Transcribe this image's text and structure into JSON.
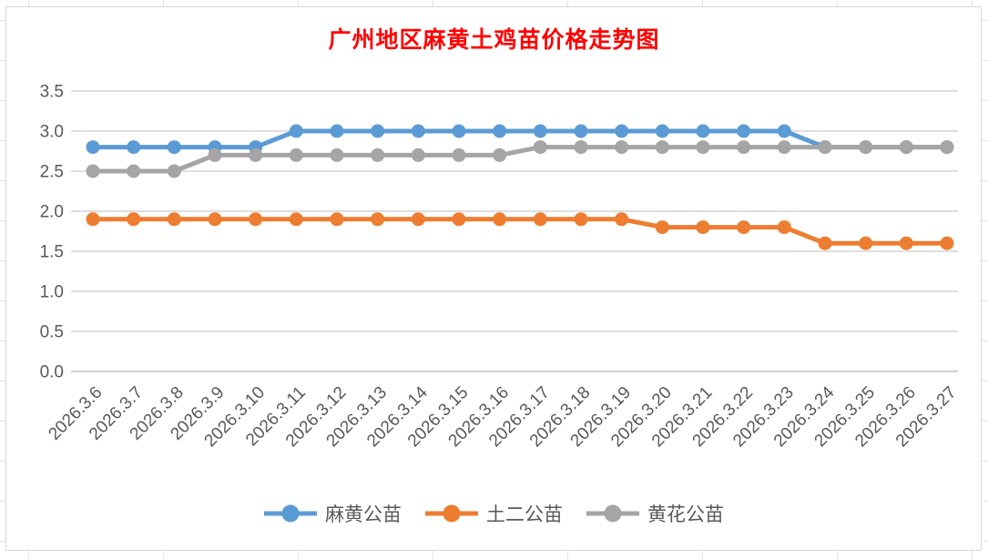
{
  "chart_data": {
    "type": "line",
    "title": "广州地区麻黄土鸡苗价格走势图",
    "title_color": "#FF0000",
    "categories": [
      "2026.3.6",
      "2026.3.7",
      "2026.3.8",
      "2026.3.9",
      "2026.3.10",
      "2026.3.11",
      "2026.3.12",
      "2026.3.13",
      "2026.3.14",
      "2026.3.15",
      "2026.3.16",
      "2026.3.17",
      "2026.3.18",
      "2026.3.19",
      "2026.3.20",
      "2026.3.21",
      "2026.3.22",
      "2026.3.23",
      "2026.3.24",
      "2026.3.25",
      "2026.3.26",
      "2026.3.27"
    ],
    "series": [
      {
        "name": "麻黄公苗",
        "color": "#5B9BD5",
        "values": [
          2.8,
          2.8,
          2.8,
          2.8,
          2.8,
          3.0,
          3.0,
          3.0,
          3.0,
          3.0,
          3.0,
          3.0,
          3.0,
          3.0,
          3.0,
          3.0,
          3.0,
          3.0,
          2.8,
          2.8,
          2.8,
          2.8
        ]
      },
      {
        "name": "土二公苗",
        "color": "#ED7D31",
        "values": [
          1.9,
          1.9,
          1.9,
          1.9,
          1.9,
          1.9,
          1.9,
          1.9,
          1.9,
          1.9,
          1.9,
          1.9,
          1.9,
          1.9,
          1.8,
          1.8,
          1.8,
          1.8,
          1.6,
          1.6,
          1.6,
          1.6
        ]
      },
      {
        "name": "黄花公苗",
        "color": "#A5A5A5",
        "values": [
          2.5,
          2.5,
          2.5,
          2.7,
          2.7,
          2.7,
          2.7,
          2.7,
          2.7,
          2.7,
          2.7,
          2.8,
          2.8,
          2.8,
          2.8,
          2.8,
          2.8,
          2.8,
          2.8,
          2.8,
          2.8,
          2.8
        ]
      }
    ],
    "xlabel": "",
    "ylabel": "",
    "ylim": [
      0,
      3.5
    ],
    "ytick_step": 0.5,
    "ytick_labels": [
      "0.0",
      "0.5",
      "1.0",
      "1.5",
      "2.0",
      "2.5",
      "3.0",
      "3.5"
    ],
    "grid": true,
    "legend_position": "bottom",
    "axis_label_color": "#595959",
    "gridline_color": "#D9D9D9"
  }
}
